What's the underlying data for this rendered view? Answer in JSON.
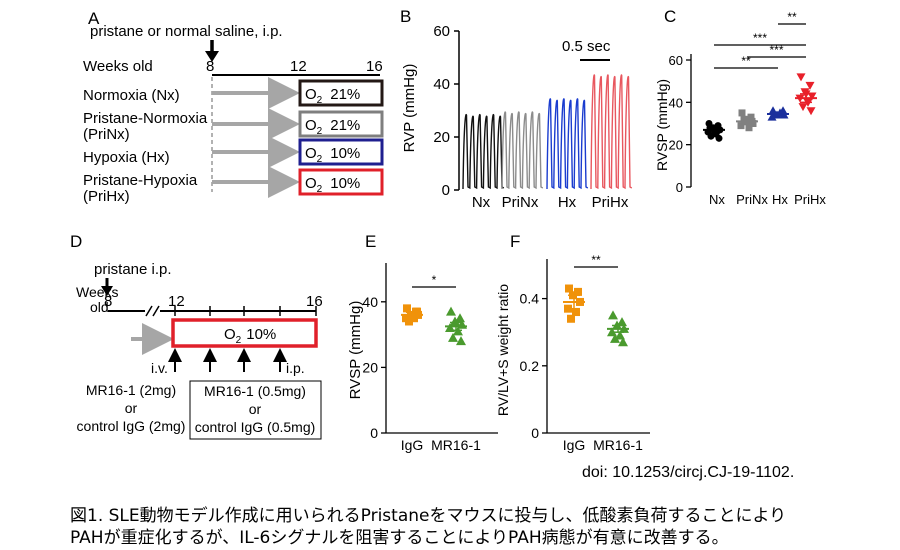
{
  "panels": {
    "A": {
      "letter": "A",
      "header": "pristane or normal saline, i.p.",
      "weeks_label": "Weeks old",
      "ticks": [
        "8",
        "12",
        "16"
      ],
      "groups": [
        {
          "label": "Normoxia (Nx)",
          "o2": "21%",
          "color": "#231815"
        },
        {
          "label": "Pristane-Normoxia (PriNx)",
          "line1": "Pristane-Normoxia",
          "line2": "(PriNx)",
          "o2": "21%",
          "color": "#7f7f7f"
        },
        {
          "label": "Hypoxia (Hx)",
          "o2": "10%",
          "color": "#1f1f8f"
        },
        {
          "label": "Pristane-Hypoxia (PriHx)",
          "line1": "Pristane-Hypoxia",
          "line2": "(PriHx)",
          "o2": "10%",
          "color": "#e0202a"
        }
      ],
      "o2_prefix": "O",
      "o2_sub": "2"
    },
    "B": {
      "letter": "B",
      "ylabel": "RVP (mmHg)",
      "yticks": [
        "0",
        "20",
        "40",
        "60"
      ],
      "scale_label": "0.5 sec",
      "groups": [
        {
          "name": "Nx",
          "peak": 29,
          "color": "#111111"
        },
        {
          "name": "PriNx",
          "peak": 30,
          "color": "#8c8c8c"
        },
        {
          "name": "Hx",
          "peak": 35,
          "color": "#1a3ccf"
        },
        {
          "name": "PriHx",
          "peak": 44,
          "color": "#e8575f"
        }
      ]
    },
    "C": {
      "letter": "C",
      "ylabel": "RVSP (mmHg)",
      "yticks": [
        "0",
        "20",
        "40",
        "60"
      ],
      "sig": [
        "**",
        "***",
        "***",
        "**"
      ]
    },
    "D": {
      "letter": "D",
      "injection": "pristane i.p.",
      "weeks_line1": "Weeks",
      "weeks_line2": "old",
      "ticks": [
        "8",
        "12",
        "16"
      ],
      "o2_prefix": "O",
      "o2_sub": "2",
      "o2_value": "10%",
      "iv": "i.v.",
      "ip": "i.p.",
      "left_treat": [
        "MR16-1 (2mg)",
        "or",
        "control IgG (2mg)"
      ],
      "right_treat": [
        "MR16-1 (0.5mg)",
        "or",
        "control IgG (0.5mg)"
      ]
    },
    "E": {
      "letter": "E",
      "ylabel": "RVSP (mmHg)",
      "yticks": [
        "0",
        "20",
        "40"
      ],
      "groups": [
        "IgG",
        "MR16-1"
      ],
      "sig": "*"
    },
    "F": {
      "letter": "F",
      "ylabel": "RV/LV+S weight ratio",
      "yticks": [
        "0",
        "0.2",
        "0.4"
      ],
      "groups": [
        "IgG",
        "MR16-1"
      ],
      "sig": "**"
    }
  },
  "chart_data": [
    {
      "type": "scatter",
      "panel": "C",
      "ylabel": "RVSP (mmHg)",
      "ylim": [
        0,
        60
      ],
      "categories": [
        "Nx",
        "PriNx",
        "Hx",
        "PriHx"
      ],
      "series": [
        {
          "name": "Nx",
          "color": "#000000",
          "marker": "circle",
          "mean": 27,
          "sem": 1.5,
          "values": [
            30,
            29,
            28,
            27,
            26,
            25,
            24,
            23,
            27,
            28
          ]
        },
        {
          "name": "PriNx",
          "color": "#808080",
          "marker": "square",
          "mean": 31,
          "sem": 1.5,
          "values": [
            35,
            33,
            31,
            30,
            29,
            28,
            32,
            31
          ]
        },
        {
          "name": "Hx",
          "color": "#1a2f9c",
          "marker": "triangle",
          "mean": 34.5,
          "sem": 0.8,
          "values": [
            36,
            35,
            34,
            34,
            33,
            35,
            34,
            36
          ]
        },
        {
          "name": "PriHx",
          "color": "#e8202a",
          "marker": "triangle-down",
          "mean": 42,
          "sem": 2,
          "values": [
            52,
            48,
            45,
            43,
            42,
            40,
            38,
            36,
            44
          ]
        }
      ]
    },
    {
      "type": "scatter",
      "panel": "E",
      "ylabel": "RVSP (mmHg)",
      "ylim": [
        0,
        50
      ],
      "categories": [
        "IgG",
        "MR16-1"
      ],
      "series": [
        {
          "name": "IgG",
          "color": "#f0920a",
          "marker": "square",
          "mean": 36,
          "sem": 0.8,
          "values": [
            38,
            37,
            36,
            36,
            35,
            35,
            34,
            37
          ]
        },
        {
          "name": "MR16-1",
          "color": "#4a9a2e",
          "marker": "triangle",
          "mean": 32.5,
          "sem": 1.2,
          "values": [
            37,
            35,
            34,
            33,
            32,
            31,
            29,
            28
          ]
        }
      ]
    },
    {
      "type": "scatter",
      "panel": "F",
      "ylabel": "RV/LV+S weight ratio",
      "ylim": [
        0,
        0.5
      ],
      "categories": [
        "IgG",
        "MR16-1"
      ],
      "series": [
        {
          "name": "IgG",
          "color": "#f0920a",
          "marker": "square",
          "mean": 0.39,
          "sem": 0.02,
          "values": [
            0.43,
            0.42,
            0.41,
            0.39,
            0.37,
            0.36,
            0.34
          ]
        },
        {
          "name": "MR16-1",
          "color": "#4a9a2e",
          "marker": "triangle",
          "mean": 0.31,
          "sem": 0.01,
          "values": [
            0.35,
            0.33,
            0.32,
            0.31,
            0.3,
            0.29,
            0.28,
            0.27
          ]
        }
      ]
    }
  ],
  "doi": "doi: 10.1253/circj.CJ-19-1102.",
  "caption": {
    "line1": "図1. SLE動物モデル作成に用いられるPristaneをマウスに投与し、低酸素負荷することにより",
    "line2": "PAHが重症化するが、IL-6シグナルを阻害することによりPAH病態が有意に改善する。"
  }
}
